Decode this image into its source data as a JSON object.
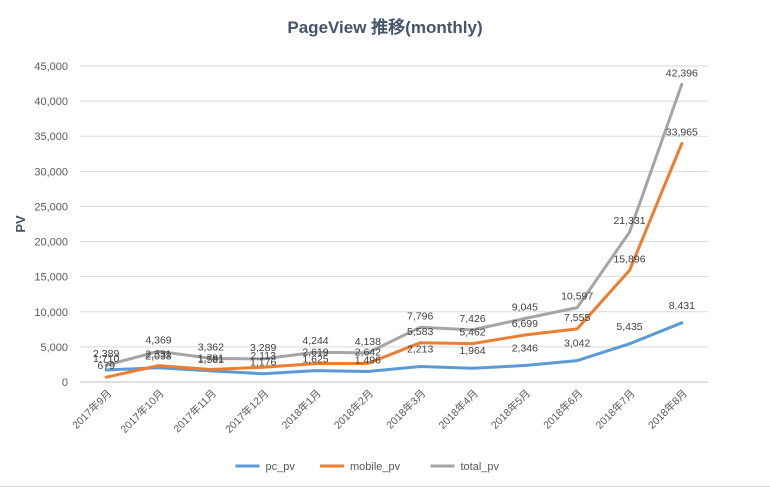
{
  "chart_data": {
    "type": "line",
    "title": "PageView 推移(monthly)",
    "xlabel": "",
    "ylabel": "PV",
    "ylim": [
      0,
      45000
    ],
    "yticks": [
      0,
      5000,
      10000,
      15000,
      20000,
      25000,
      30000,
      35000,
      40000,
      45000
    ],
    "ytick_labels": [
      "0",
      "5,000",
      "10,000",
      "15,000",
      "20,000",
      "25,000",
      "30,000",
      "35,000",
      "40,000",
      "45,000"
    ],
    "categories": [
      "2017年9月",
      "2017年10月",
      "2017年11月",
      "2017年12月",
      "2018年1月",
      "2018年2月",
      "2018年3月",
      "2018年4月",
      "2018年5月",
      "2018年6月",
      "2018年7月",
      "2018年8月"
    ],
    "legend_position": "bottom",
    "series": [
      {
        "name": "pc_pv",
        "color": "#5b9bd5",
        "values": [
          1710,
          2038,
          1581,
          1176,
          1625,
          1496,
          2213,
          1964,
          2346,
          3042,
          5435,
          8431
        ],
        "labels": [
          "1,710",
          "2,038",
          "1,581",
          "1,176",
          "1,625",
          "1,496",
          "2,213",
          "1,964",
          "2,346",
          "3,042",
          "5,435",
          "8,431"
        ]
      },
      {
        "name": "mobile_pv",
        "color": "#ed7d31",
        "values": [
          679,
          2331,
          1781,
          2113,
          2619,
          2642,
          5583,
          5462,
          6699,
          7555,
          15896,
          33965
        ],
        "labels": [
          "679",
          "2,331",
          "1,781",
          "2,113",
          "2,619",
          "2,642",
          "5,583",
          "5,462",
          "6,699",
          "7,555",
          "15,896",
          "33,965"
        ]
      },
      {
        "name": "total_pv",
        "color": "#a5a5a5",
        "values": [
          2389,
          4369,
          3362,
          3289,
          4244,
          4138,
          7796,
          7426,
          9045,
          10597,
          21331,
          42396
        ],
        "labels": [
          "2,389",
          "4,369",
          "3,362",
          "3,289",
          "4,244",
          "4,138",
          "7,796",
          "7,426",
          "9,045",
          "10,597",
          "21,331",
          "42,396"
        ]
      }
    ]
  }
}
